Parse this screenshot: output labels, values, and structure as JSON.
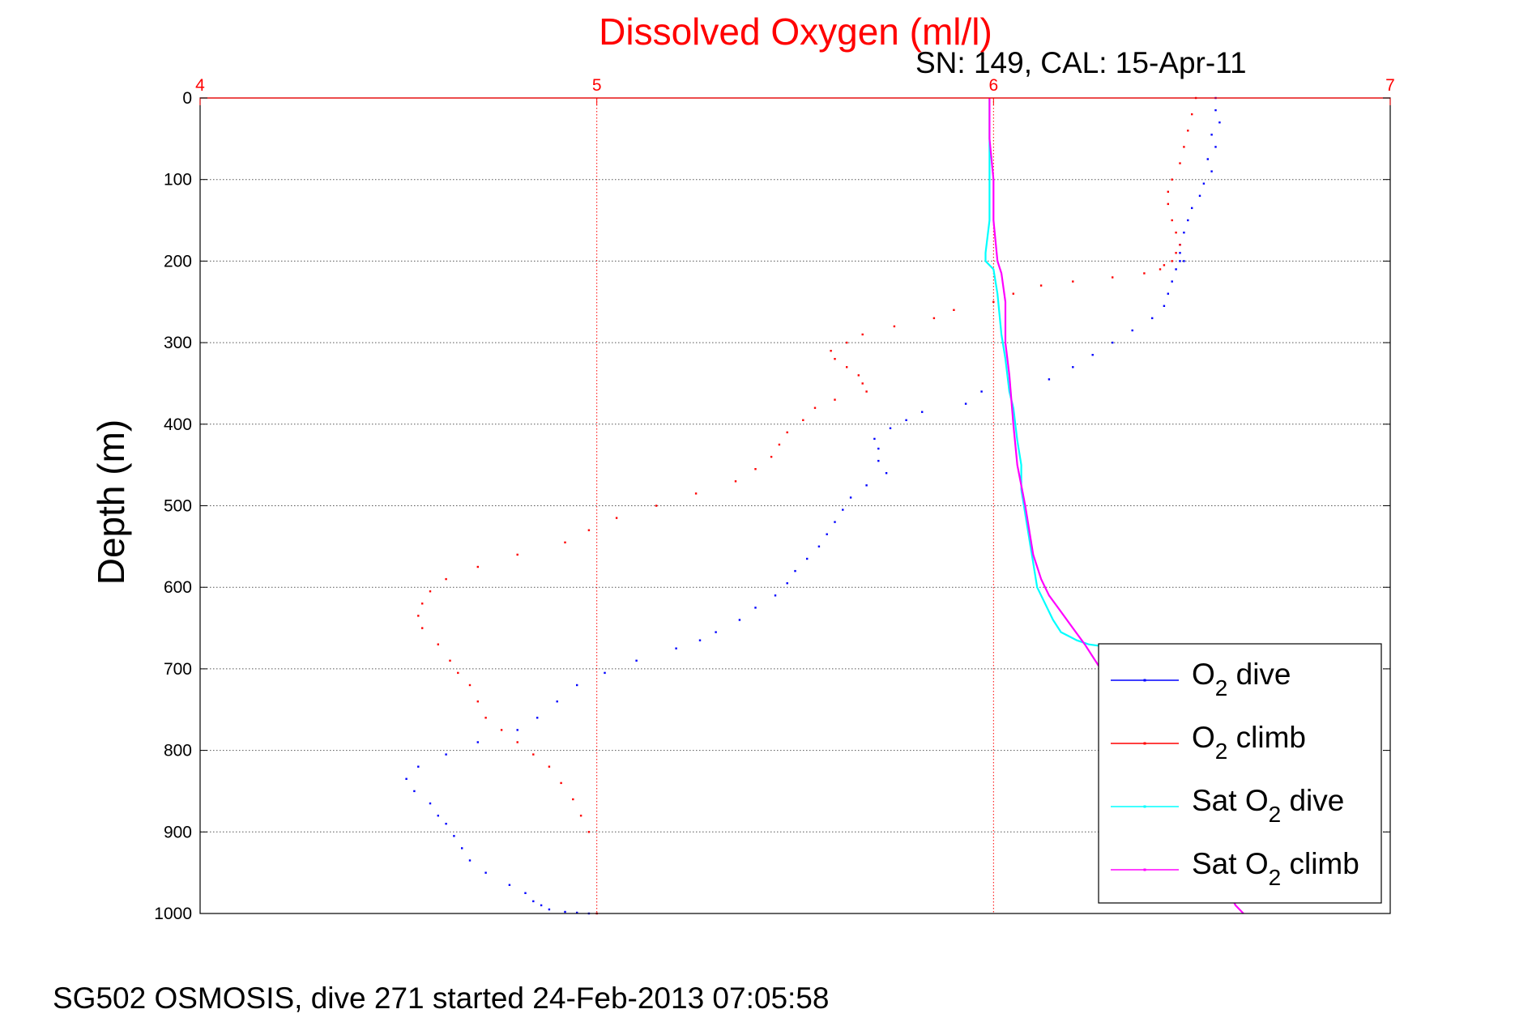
{
  "chart_data": {
    "type": "scatter",
    "title": "Dissolved Oxygen (ml/l)",
    "subtitle": "SN: 149, CAL: 15-Apr-11",
    "ylabel": "Depth (m)",
    "footer": "SG502 OSMOSIS, dive 271 started 24-Feb-2013 07:05:58",
    "xlim": [
      4,
      7
    ],
    "ylim": [
      0,
      1000
    ],
    "y_reversed": true,
    "x_axis_position": "top",
    "x_ticks": [
      "4",
      "5",
      "6",
      "7"
    ],
    "y_ticks": [
      "0",
      "100",
      "200",
      "300",
      "400",
      "500",
      "600",
      "700",
      "800",
      "900",
      "1000"
    ],
    "grid": true,
    "legend_position": "bottom-right",
    "colors": {
      "title": "#ff0000",
      "x_axis": "#ff0000",
      "o2_dive": "#0000ff",
      "o2_climb": "#ff0000",
      "sat_dive": "#00ffff",
      "sat_climb": "#ff00ff"
    },
    "series": [
      {
        "name": "O2 dive",
        "style": "dots",
        "x": [
          6.56,
          6.56,
          6.57,
          6.55,
          6.56,
          6.54,
          6.55,
          6.53,
          6.52,
          6.5,
          6.49,
          6.48,
          6.47,
          6.47,
          6.48,
          6.47,
          6.46,
          6.45,
          6.44,
          6.43,
          6.4,
          6.35,
          6.3,
          6.25,
          6.2,
          6.14,
          5.97,
          5.93,
          5.82,
          5.78,
          5.74,
          5.7,
          5.71,
          5.71,
          5.73,
          5.68,
          5.64,
          5.62,
          5.6,
          5.58,
          5.56,
          5.53,
          5.5,
          5.48,
          5.45,
          5.4,
          5.36,
          5.3,
          5.26,
          5.2,
          5.1,
          5.02,
          4.95,
          4.9,
          4.85,
          4.8,
          4.7,
          4.62,
          4.55,
          4.52,
          4.54,
          4.58,
          4.6,
          4.62,
          4.64,
          4.66,
          4.68,
          4.72,
          4.78,
          4.82,
          4.84,
          4.86,
          4.88,
          4.92,
          4.95,
          4.98
        ],
        "y": [
          0,
          15,
          30,
          45,
          60,
          75,
          90,
          105,
          120,
          135,
          150,
          165,
          180,
          190,
          200,
          200,
          210,
          225,
          240,
          255,
          270,
          285,
          300,
          315,
          330,
          345,
          360,
          375,
          385,
          395,
          405,
          418,
          430,
          445,
          460,
          475,
          490,
          505,
          520,
          535,
          550,
          565,
          580,
          595,
          610,
          625,
          640,
          655,
          665,
          675,
          690,
          705,
          720,
          740,
          760,
          775,
          790,
          805,
          820,
          835,
          850,
          865,
          880,
          890,
          905,
          920,
          935,
          950,
          965,
          975,
          985,
          990,
          995,
          998,
          999,
          1000
        ]
      },
      {
        "name": "O2 climb",
        "style": "dots",
        "x": [
          6.51,
          6.5,
          6.49,
          6.48,
          6.47,
          6.45,
          6.44,
          6.44,
          6.45,
          6.46,
          6.47,
          6.46,
          6.45,
          6.43,
          6.42,
          6.38,
          6.3,
          6.2,
          6.12,
          6.05,
          6.0,
          5.9,
          5.85,
          5.75,
          5.67,
          5.63,
          5.59,
          5.6,
          5.63,
          5.66,
          5.67,
          5.68,
          5.6,
          5.55,
          5.52,
          5.48,
          5.46,
          5.44,
          5.4,
          5.35,
          5.25,
          5.15,
          5.05,
          4.98,
          4.92,
          4.8,
          4.7,
          4.62,
          4.58,
          4.56,
          4.55,
          4.56,
          4.6,
          4.63,
          4.65,
          4.68,
          4.7,
          4.72,
          4.76,
          4.8,
          4.84,
          4.88,
          4.91,
          4.94,
          4.96,
          4.98,
          5.0
        ],
        "y": [
          0,
          20,
          40,
          60,
          80,
          100,
          115,
          130,
          150,
          165,
          180,
          190,
          200,
          205,
          210,
          215,
          220,
          225,
          230,
          240,
          250,
          260,
          270,
          280,
          290,
          300,
          310,
          320,
          330,
          340,
          350,
          360,
          370,
          380,
          395,
          410,
          425,
          440,
          455,
          470,
          485,
          500,
          515,
          530,
          545,
          560,
          575,
          590,
          605,
          620,
          635,
          650,
          670,
          690,
          705,
          720,
          740,
          760,
          775,
          790,
          805,
          820,
          840,
          860,
          880,
          900,
          1000
        ]
      },
      {
        "name": "Sat O2 dive",
        "style": "line",
        "x": [
          5.99,
          5.99,
          5.99,
          5.99,
          5.98,
          5.98,
          6.0,
          6.01,
          6.02,
          6.03,
          6.04,
          6.05,
          6.06,
          6.07,
          6.07,
          6.08,
          6.09,
          6.1,
          6.11,
          6.13,
          6.15,
          6.17,
          6.19,
          6.21,
          6.24,
          6.27,
          6.3
        ],
        "y": [
          0,
          50,
          100,
          150,
          190,
          200,
          210,
          240,
          290,
          320,
          360,
          380,
          420,
          450,
          480,
          510,
          540,
          570,
          600,
          620,
          640,
          655,
          660,
          665,
          670,
          672,
          675
        ]
      },
      {
        "name": "Sat O2 climb",
        "style": "line",
        "x": [
          5.99,
          5.99,
          6.0,
          6.0,
          6.01,
          6.02,
          6.03,
          6.03,
          6.04,
          6.05,
          6.06,
          6.08,
          6.09,
          6.1,
          6.12,
          6.14,
          6.17,
          6.2,
          6.23,
          6.27,
          6.3,
          6.35,
          6.4,
          6.45,
          6.5,
          6.55,
          6.6,
          6.61,
          6.63
        ],
        "y": [
          0,
          50,
          100,
          150,
          200,
          215,
          250,
          300,
          340,
          400,
          450,
          500,
          530,
          560,
          590,
          610,
          630,
          650,
          670,
          700,
          720,
          760,
          800,
          850,
          900,
          950,
          980,
          990,
          1000
        ]
      }
    ],
    "legend": [
      {
        "base": "O",
        "sub": "2",
        "rest": " dive"
      },
      {
        "base": "O",
        "sub": "2",
        "rest": " climb"
      },
      {
        "base": "Sat O",
        "sub": "2",
        "rest": " dive"
      },
      {
        "base": "Sat O",
        "sub": "2",
        "rest": " climb"
      }
    ]
  }
}
